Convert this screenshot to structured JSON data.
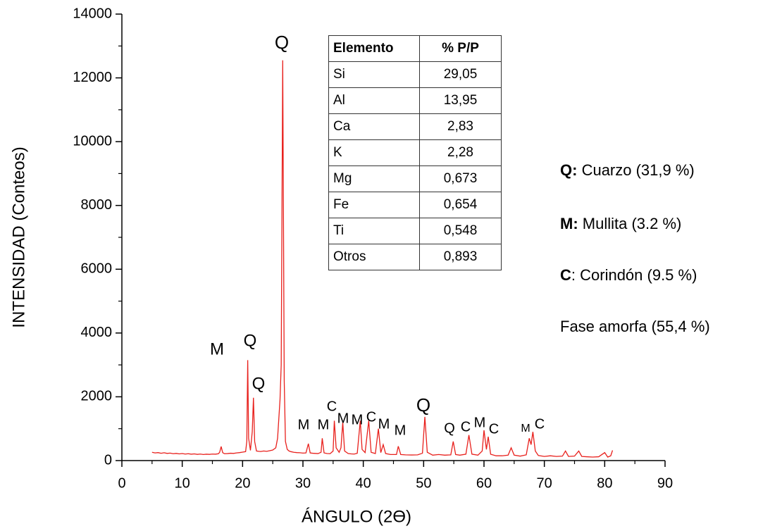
{
  "chart_data": {
    "type": "line",
    "xlabel": "ÁNGULO (2ϴ)",
    "ylabel": "INTENSIDAD (Conteos)",
    "color": "#e8201c",
    "xlim": [
      0,
      90
    ],
    "xticks": [
      0,
      10,
      20,
      30,
      40,
      50,
      60,
      70,
      80,
      90
    ],
    "ylim": [
      0,
      14000
    ],
    "yticks": [
      0,
      2000,
      4000,
      6000,
      8000,
      10000,
      12000,
      14000
    ],
    "x": [
      5,
      5.5,
      6,
      6.5,
      7,
      7.5,
      8,
      8.5,
      9,
      9.5,
      10,
      10.5,
      11,
      11.5,
      12,
      12.5,
      13,
      13.5,
      14,
      14.5,
      15,
      15.5,
      16,
      16.2,
      16.45,
      16.7,
      17,
      17.5,
      18,
      18.5,
      19,
      19.5,
      20,
      20.5,
      20.7,
      20.85,
      21,
      21.3,
      21.6,
      21.8,
      22,
      22.3,
      22.7,
      23,
      23.5,
      24,
      24.5,
      25,
      25.5,
      25.8,
      26,
      26.2,
      26.4,
      26.65,
      26.9,
      27.1,
      27.4,
      27.7,
      28,
      28.5,
      29,
      29.5,
      30,
      30.5,
      30.9,
      31.2,
      31.6,
      32,
      32.5,
      33,
      33.2,
      33.5,
      34,
      34.5,
      35,
      35.2,
      35.5,
      36,
      36.3,
      36.6,
      36.9,
      37.5,
      38,
      38.5,
      39,
      39.5,
      39.8,
      40.3,
      40.9,
      41.3,
      42,
      42.5,
      42.9,
      43.3,
      43.7,
      44.5,
      45.5,
      45.8,
      46.2,
      47,
      48,
      49,
      49.8,
      50.2,
      50.6,
      51.5,
      52.5,
      53.5,
      54.5,
      54.9,
      55.3,
      56,
      57,
      57.5,
      58,
      59,
      59.7,
      60,
      60.4,
      60.7,
      61.1,
      62,
      63,
      64,
      64.5,
      65,
      66,
      67,
      67.5,
      67.8,
      68.1,
      68.5,
      69,
      70,
      71,
      72,
      73,
      73.5,
      74,
      75,
      75.7,
      76.2,
      77,
      78,
      79,
      80,
      80.5,
      81,
      81.3
    ],
    "values": [
      260,
      240,
      250,
      230,
      245,
      225,
      235,
      215,
      225,
      210,
      220,
      205,
      215,
      200,
      210,
      195,
      205,
      190,
      200,
      195,
      205,
      200,
      215,
      260,
      440,
      250,
      215,
      220,
      230,
      225,
      240,
      250,
      265,
      280,
      600,
      3150,
      700,
      320,
      900,
      1970,
      600,
      300,
      290,
      285,
      300,
      290,
      310,
      330,
      400,
      700,
      1300,
      1900,
      3000,
      12550,
      2500,
      600,
      350,
      300,
      280,
      260,
      250,
      245,
      235,
      240,
      530,
      240,
      230,
      225,
      220,
      260,
      700,
      240,
      220,
      215,
      300,
      1250,
      400,
      260,
      400,
      1200,
      300,
      220,
      210,
      205,
      230,
      1250,
      350,
      250,
      1250,
      260,
      220,
      1000,
      250,
      500,
      220,
      190,
      190,
      450,
      190,
      180,
      175,
      180,
      230,
      1370,
      260,
      170,
      190,
      170,
      180,
      600,
      190,
      170,
      200,
      800,
      200,
      170,
      300,
      950,
      350,
      750,
      200,
      150,
      150,
      170,
      400,
      170,
      140,
      180,
      700,
      500,
      900,
      300,
      160,
      130,
      150,
      130,
      140,
      300,
      130,
      140,
      300,
      130,
      120,
      110,
      120,
      250,
      110,
      150,
      320
    ],
    "peak_labels": [
      "M",
      "Q",
      "Q",
      "Q",
      "M",
      "M",
      "C",
      "M",
      "M",
      "C",
      "M",
      "M",
      "Q",
      "Q",
      "C",
      "M",
      "C",
      "M",
      "C"
    ],
    "table": {
      "header": [
        "Elemento",
        "% P/P"
      ],
      "rows": [
        [
          "Si",
          "29,05"
        ],
        [
          "Al",
          "13,95"
        ],
        [
          "Ca",
          "2,83"
        ],
        [
          "K",
          "2,28"
        ],
        [
          "Mg",
          "0,673"
        ],
        [
          "Fe",
          "0,654"
        ],
        [
          "Ti",
          "0,548"
        ],
        [
          "Otros",
          "0,893"
        ]
      ]
    },
    "legend_notes": [
      {
        "key": "Q:",
        "text": " Cuarzo (31,9 %)"
      },
      {
        "key": "M:",
        "text": " Mullita (3.2 %)"
      },
      {
        "key": "C",
        "text": ": Corindón (9.5 %)"
      },
      {
        "text": "Fase amorfa (55,4 %)"
      }
    ]
  }
}
